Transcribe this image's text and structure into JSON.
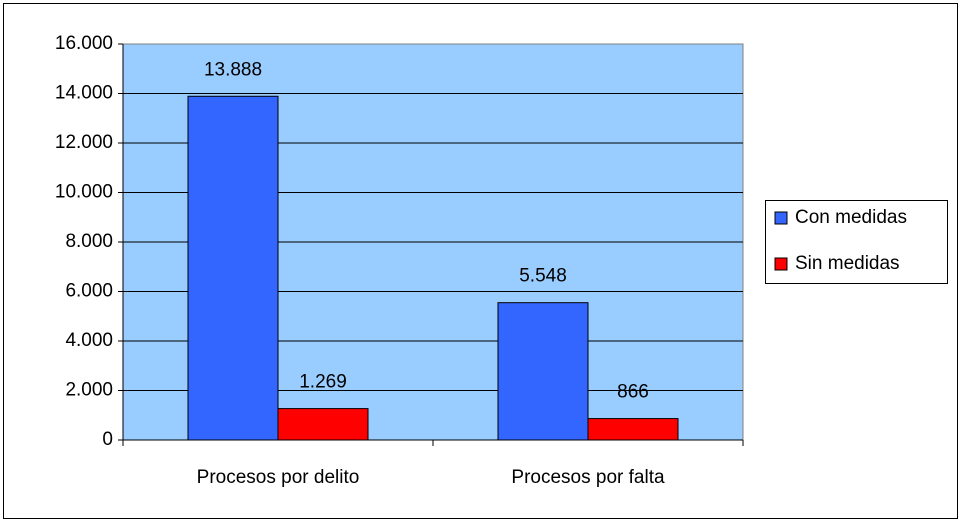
{
  "chart_data": {
    "type": "bar",
    "categories": [
      "Procesos por delito",
      "Procesos por falta"
    ],
    "series": [
      {
        "name": "Con medidas",
        "color": "#3366ff",
        "values": [
          13888,
          5548
        ],
        "value_labels": [
          "13.888",
          "5.548"
        ]
      },
      {
        "name": "Sin medidas",
        "color": "#ff0000",
        "values": [
          1269,
          866
        ],
        "value_labels": [
          "1.269",
          "866"
        ]
      }
    ],
    "ylim": [
      0,
      16000
    ],
    "yticks": [
      0,
      {
        "value": 2000,
        "label": "2.000"
      },
      {
        "value": 4000,
        "label": "4.000"
      },
      {
        "value": 6000,
        "label": "6.000"
      },
      {
        "value": 8000,
        "label": "8.000"
      },
      {
        "value": 10000,
        "label": "10.000"
      },
      {
        "value": 12000,
        "label": "12.000"
      },
      {
        "value": 14000,
        "label": "14.000"
      },
      {
        "value": 16000,
        "label": "16.000"
      }
    ],
    "grid": true,
    "legend": "right"
  }
}
